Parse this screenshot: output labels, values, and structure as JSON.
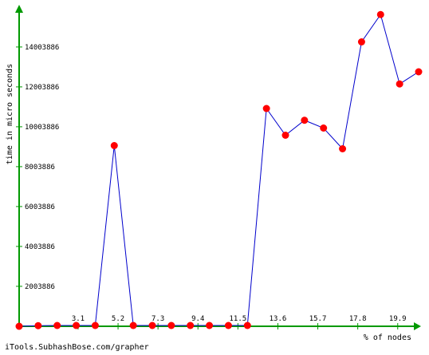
{
  "chart_data": {
    "type": "line",
    "xlabel": "% of nodes",
    "ylabel": "time in micro seconds",
    "x_tick_labels": [
      "3.1",
      "5.2",
      "7.3",
      "9.4",
      "11.5",
      "13.6",
      "15.7",
      "17.8",
      "19.9"
    ],
    "y_tick_labels": [
      "2003886",
      "4003886",
      "6003886",
      "8003886",
      "10003886",
      "12003886",
      "14003886"
    ],
    "x_ticks": [
      3.1,
      5.2,
      7.3,
      9.4,
      11.5,
      13.6,
      15.7,
      17.8,
      19.9
    ],
    "y_ticks": [
      2003886,
      4003886,
      6003886,
      8003886,
      10003886,
      12003886,
      14003886
    ],
    "xlim": [
      0,
      21
    ],
    "ylim": [
      0,
      16000000
    ],
    "grid": false,
    "series": [
      {
        "color": "#0000cc",
        "marker_color": "#ff0000",
        "x": [
          0,
          1,
          2,
          3,
          4,
          5,
          6,
          7,
          8,
          9,
          10,
          11,
          12,
          13,
          14,
          15,
          16,
          17,
          18,
          19,
          20,
          21
        ],
        "y": [
          0,
          30000,
          40000,
          40000,
          40000,
          9060000,
          40000,
          40000,
          40000,
          40000,
          40000,
          40000,
          40000,
          10920000,
          9580000,
          10330000,
          9940000,
          8900000,
          14260000,
          15630000,
          12150000,
          12760000
        ]
      }
    ]
  },
  "footer": "iTools.SubhashBose.com/grapher",
  "colors": {
    "axis": "#009900",
    "line": "#0000cc",
    "marker": "#ff0000"
  }
}
